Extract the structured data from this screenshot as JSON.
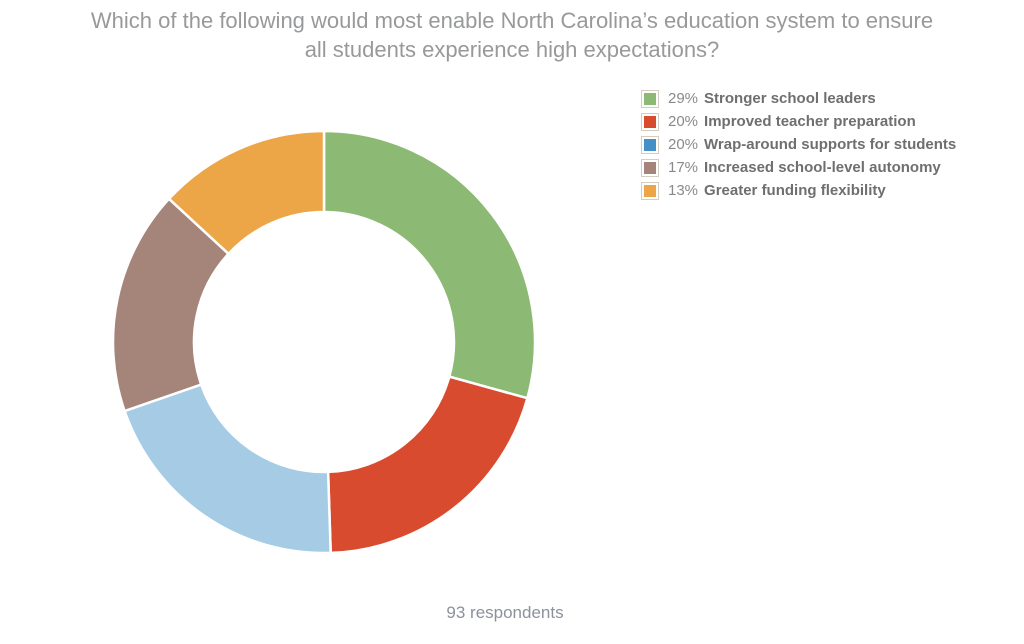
{
  "title": {
    "line1": "Which of the following would most enable North Carolina’s education system to ensure",
    "line2": "all students experience high expectations?"
  },
  "footer": {
    "text": "93 respondents"
  },
  "chart_data": {
    "type": "pie",
    "subtype": "donut",
    "title": "Which of the following would most enable North Carolina’s education system to ensure all students experience high expectations?",
    "total_respondents": 93,
    "legend_position": "top-right",
    "start_angle_deg": 0,
    "direction": "clockwise",
    "inner_radius_ratio": 0.61,
    "segments": [
      {
        "label": "Stronger school leaders",
        "percent": 29,
        "slice_color": "#8cba74",
        "legend_color": "#8cba74"
      },
      {
        "label": "Improved teacher preparation",
        "percent": 20,
        "slice_color": "#d84b2f",
        "legend_color": "#d84b2f"
      },
      {
        "label": "Wrap-around supports for students",
        "percent": 20,
        "slice_color": "#a6cbe5",
        "legend_color": "#4590c4"
      },
      {
        "label": "Increased school-level autonomy",
        "percent": 17,
        "slice_color": "#a5847a",
        "legend_color": "#a5847a"
      },
      {
        "label": "Greater funding flexibility",
        "percent": 13,
        "slice_color": "#eda647",
        "legend_color": "#eda647"
      }
    ],
    "style": {
      "title_color": "#98999b",
      "footer_color": "#8b929c",
      "legend_percent_color": "#8a8a8a",
      "legend_label_color": "#6f6f6f",
      "swatch_border_color": "#d5cdc0",
      "slice_separator_color": "#ffffff"
    }
  }
}
